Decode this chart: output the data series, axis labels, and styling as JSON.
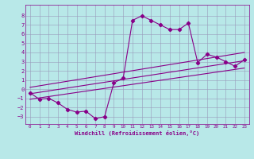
{
  "xlabel": "Windchill (Refroidissement éolien,°C)",
  "bg_color": "#b8e8e8",
  "grid_color": "#9999bb",
  "line_color": "#880088",
  "xlim": [
    -0.5,
    23.5
  ],
  "ylim": [
    -3.8,
    9.2
  ],
  "xticks": [
    0,
    1,
    2,
    3,
    4,
    5,
    6,
    7,
    8,
    9,
    10,
    11,
    12,
    13,
    14,
    15,
    16,
    17,
    18,
    19,
    20,
    21,
    22,
    23
  ],
  "yticks": [
    -3,
    -2,
    -1,
    0,
    1,
    2,
    3,
    4,
    5,
    6,
    7,
    8
  ],
  "scatter_x": [
    0,
    1,
    2,
    3,
    4,
    5,
    6,
    7,
    8,
    9,
    10,
    11,
    12,
    13,
    14,
    15,
    16,
    17,
    18,
    19,
    20,
    21,
    22,
    23
  ],
  "scatter_y": [
    -0.4,
    -1.1,
    -1.0,
    -1.5,
    -2.2,
    -2.5,
    -2.4,
    -3.2,
    -3.0,
    0.7,
    1.2,
    7.5,
    8.0,
    7.5,
    7.0,
    6.5,
    6.5,
    7.2,
    2.9,
    3.8,
    3.5,
    3.0,
    2.5,
    3.2
  ],
  "reg_lines": [
    {
      "x0": 0,
      "x1": 23,
      "y0": -1.1,
      "y1": 2.3
    },
    {
      "x0": 0,
      "x1": 23,
      "y0": -0.5,
      "y1": 3.1
    },
    {
      "x0": 0,
      "x1": 23,
      "y0": 0.2,
      "y1": 4.0
    }
  ]
}
